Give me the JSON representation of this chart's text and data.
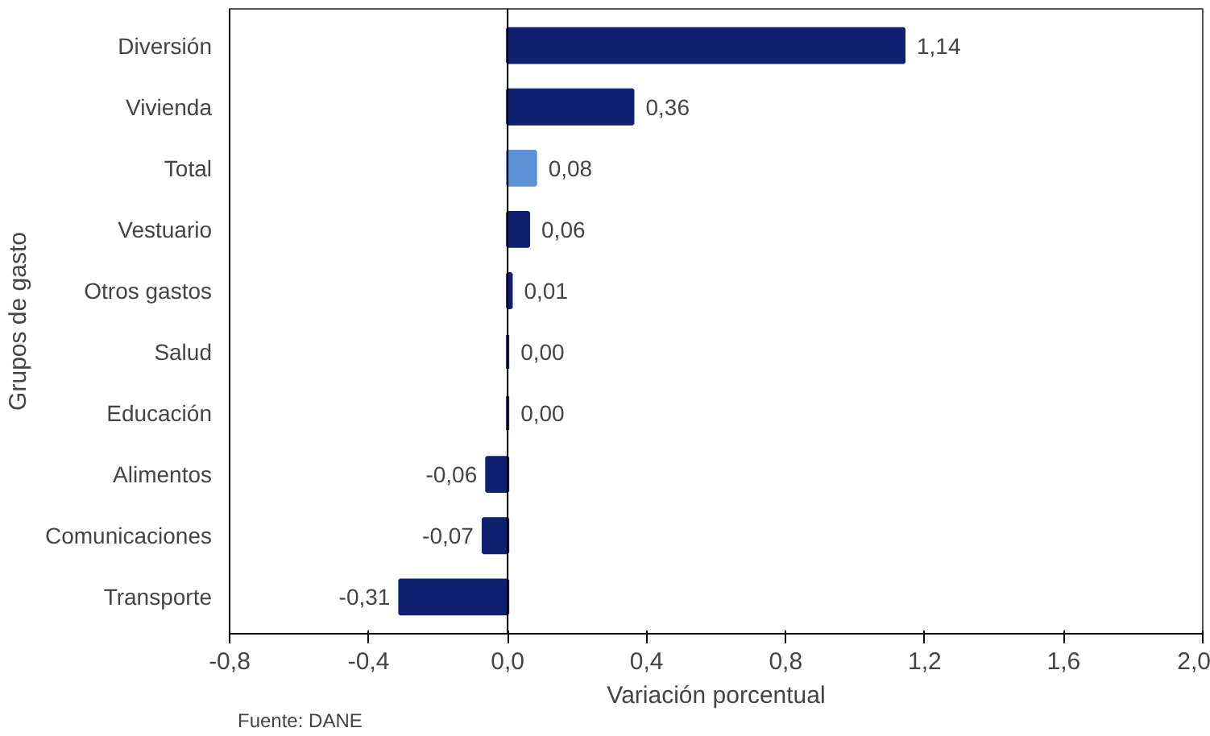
{
  "chart_data": {
    "type": "bar",
    "orientation": "horizontal",
    "xlabel": "Variación porcentual",
    "ylabel": "Grupos de gasto",
    "categories": [
      "Diversión",
      "Vivienda",
      "Total",
      "Vestuario",
      "Otros gastos",
      "Salud",
      "Educación",
      "Alimentos",
      "Comunicaciones",
      "Transporte"
    ],
    "values": [
      1.14,
      0.36,
      0.08,
      0.06,
      0.01,
      0.0,
      0.0,
      -0.06,
      -0.07,
      -0.31
    ],
    "colors": [
      "#0f2170",
      "#0f2170",
      "#5b8fd6",
      "#0f2170",
      "#0f2170",
      "#0f2170",
      "#0f2170",
      "#0f2170",
      "#0f2170",
      "#0f2170"
    ],
    "value_labels": [
      "1,14",
      "0,36",
      "0,08",
      "0,06",
      "0,01",
      "0,00",
      "0,00",
      "-0,06",
      "-0,07",
      "-0,31"
    ],
    "xlim": [
      -0.8,
      2.0
    ],
    "xticks": [
      {
        "value": -0.8,
        "label": "-0,8"
      },
      {
        "value": -0.4,
        "label": "-0,4"
      },
      {
        "value": 0.0,
        "label": "0,0"
      },
      {
        "value": 0.4,
        "label": "0,4"
      },
      {
        "value": 0.8,
        "label": "0,8"
      },
      {
        "value": 1.2,
        "label": "1,2"
      },
      {
        "value": 1.6,
        "label": "1,6"
      },
      {
        "value": 2.0,
        "label": "2,0"
      }
    ],
    "ref_lines": [
      {
        "axis": "x",
        "value": 0.0,
        "color": "#000000"
      }
    ],
    "grid": false,
    "annotations": [
      "Fuente: DANE"
    ]
  }
}
